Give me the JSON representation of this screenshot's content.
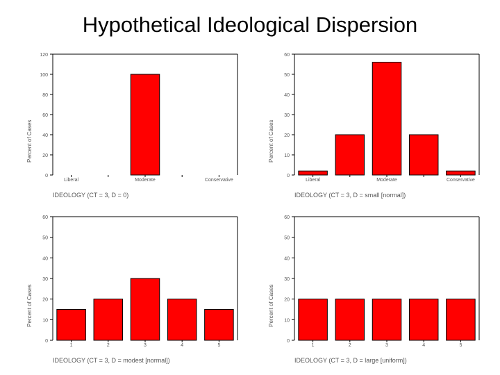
{
  "slide": {
    "title": "Hypothetical Ideological Dispersion"
  },
  "colors": {
    "bar": "#ff0000",
    "bar_stroke": "#000000",
    "axis": "#000000",
    "tick_text": "#555555"
  },
  "chart_data": [
    {
      "type": "bar",
      "ylabel": "Percent of Cases",
      "xlabel": "IDEOLOGY (CT = 3, D = 0)",
      "categories": [
        "Liberal",
        "",
        "Moderate",
        "",
        "Conservative"
      ],
      "values": [
        0,
        0,
        100,
        0,
        0
      ],
      "ylim": [
        0,
        120
      ],
      "yticks": [
        "0",
        "20",
        "40",
        "60",
        "80",
        "100",
        "120"
      ],
      "grid": false
    },
    {
      "type": "bar",
      "ylabel": "Percent of Cases",
      "xlabel": "IDEOLOGY (CT = 3, D = small [normal])",
      "categories": [
        "Liberal",
        "",
        "Moderate",
        "",
        "Conservative"
      ],
      "values": [
        2,
        20,
        56,
        20,
        2
      ],
      "ylim": [
        0,
        60
      ],
      "yticks": [
        "0",
        "10",
        "20",
        "30",
        "40",
        "50",
        "60"
      ],
      "grid": false
    },
    {
      "type": "bar",
      "ylabel": "Percent of Cases",
      "xlabel": "IDEOLOGY (CT = 3, D = modest [normal])",
      "categories": [
        "1",
        "2",
        "3",
        "4",
        "5"
      ],
      "values": [
        15,
        20,
        30,
        20,
        15
      ],
      "ylim": [
        0,
        60
      ],
      "yticks": [
        "0",
        "10",
        "20",
        "30",
        "40",
        "50",
        "60"
      ],
      "grid": false
    },
    {
      "type": "bar",
      "ylabel": "Percent of Cases",
      "xlabel": "IDEOLOGY (CT = 3, D = large [uniform])",
      "categories": [
        "1",
        "2",
        "3",
        "4",
        "5"
      ],
      "values": [
        20,
        20,
        20,
        20,
        20
      ],
      "ylim": [
        0,
        60
      ],
      "yticks": [
        "0",
        "10",
        "20",
        "30",
        "40",
        "50",
        "60"
      ],
      "grid": false
    }
  ]
}
